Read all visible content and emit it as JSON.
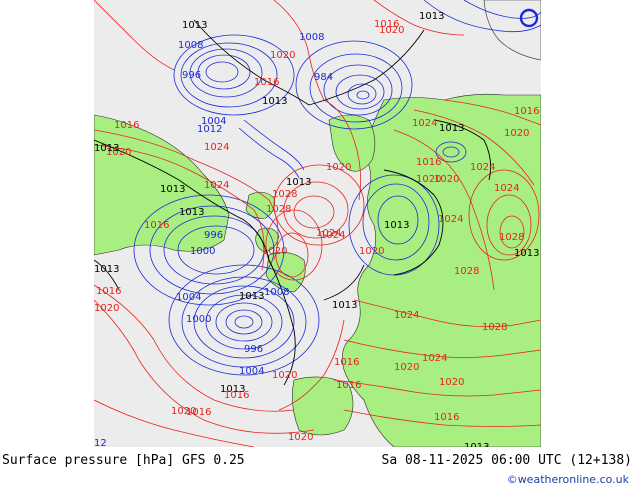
{
  "caption": {
    "left": "Surface pressure [hPa] GFS 0.25",
    "right": "Sa 08-11-2025 06:00 UTC (12+138)"
  },
  "credit": "©weatheronline.co.uk",
  "colors": {
    "sea": "#ececec",
    "land": "#a9ee80",
    "isobar_high": "#e8231f",
    "isobar_low": "#1a2bd6",
    "isobar_ref": "#000000",
    "credit": "#1a3ea8"
  },
  "map_labels": [
    {
      "text": "1013",
      "tone": "black"
    },
    {
      "text": "1008",
      "tone": "blue"
    },
    {
      "text": "996",
      "tone": "blue"
    },
    {
      "text": "1004",
      "tone": "blue"
    },
    {
      "text": "1012",
      "tone": "blue"
    },
    {
      "text": "1020",
      "tone": "red"
    },
    {
      "text": "1016",
      "tone": "red"
    },
    {
      "text": "1013",
      "tone": "black"
    },
    {
      "text": "1008",
      "tone": "blue"
    },
    {
      "text": "984",
      "tone": "blue"
    },
    {
      "text": "1016",
      "tone": "red"
    },
    {
      "text": "1020",
      "tone": "red"
    },
    {
      "text": "1013",
      "tone": "black"
    },
    {
      "text": "1016",
      "tone": "red"
    },
    {
      "text": "1020",
      "tone": "red"
    },
    {
      "text": "1024",
      "tone": "red"
    },
    {
      "text": "1028",
      "tone": "red"
    },
    {
      "text": "1013",
      "tone": "black"
    },
    {
      "text": "1013",
      "tone": "black"
    },
    {
      "text": "1024",
      "tone": "red"
    },
    {
      "text": "1013",
      "tone": "black"
    },
    {
      "text": "1028",
      "tone": "red"
    },
    {
      "text": "1024",
      "tone": "red"
    },
    {
      "text": "996",
      "tone": "blue"
    },
    {
      "text": "1000",
      "tone": "blue"
    },
    {
      "text": "1013",
      "tone": "black"
    },
    {
      "text": "1016",
      "tone": "red"
    },
    {
      "text": "1020",
      "tone": "red"
    },
    {
      "text": "1013",
      "tone": "black"
    },
    {
      "text": "1004",
      "tone": "blue"
    },
    {
      "text": "1000",
      "tone": "blue"
    },
    {
      "text": "996",
      "tone": "blue"
    },
    {
      "text": "1008",
      "tone": "blue"
    },
    {
      "text": "1013",
      "tone": "black"
    },
    {
      "text": "1004",
      "tone": "blue"
    },
    {
      "text": "1020",
      "tone": "red"
    },
    {
      "text": "1016",
      "tone": "red"
    },
    {
      "text": "1013",
      "tone": "black"
    },
    {
      "text": "1020",
      "tone": "red"
    },
    {
      "text": "1016",
      "tone": "red"
    },
    {
      "text": "1020",
      "tone": "red"
    },
    {
      "text": "1024",
      "tone": "red"
    },
    {
      "text": "1024",
      "tone": "red"
    },
    {
      "text": "1020",
      "tone": "red"
    },
    {
      "text": "1016",
      "tone": "red"
    },
    {
      "text": "1020",
      "tone": "red"
    },
    {
      "text": "1024",
      "tone": "red"
    },
    {
      "text": "1028",
      "tone": "red"
    },
    {
      "text": "1024",
      "tone": "red"
    },
    {
      "text": "1013",
      "tone": "black"
    },
    {
      "text": "1016",
      "tone": "red"
    },
    {
      "text": "1020",
      "tone": "red"
    },
    {
      "text": "1024",
      "tone": "red"
    },
    {
      "text": "1028",
      "tone": "red"
    },
    {
      "text": "1020",
      "tone": "red"
    },
    {
      "text": "1016",
      "tone": "red"
    },
    {
      "text": "1013",
      "tone": "black"
    },
    {
      "text": "1020",
      "tone": "red"
    },
    {
      "text": "1016",
      "tone": "red"
    },
    {
      "text": "1024",
      "tone": "red"
    },
    {
      "text": "1020",
      "tone": "red"
    },
    {
      "text": "1013",
      "tone": "black"
    },
    {
      "text": "1016",
      "tone": "red"
    },
    {
      "text": "1020",
      "tone": "red"
    },
    {
      "text": "1024",
      "tone": "red"
    },
    {
      "text": "1028",
      "tone": "red"
    },
    {
      "text": "1013",
      "tone": "black"
    },
    {
      "text": "12",
      "tone": "blue"
    },
    {
      "text": "1020",
      "tone": "red"
    },
    {
      "text": "1016",
      "tone": "red"
    },
    {
      "text": "1013",
      "tone": "black"
    }
  ]
}
